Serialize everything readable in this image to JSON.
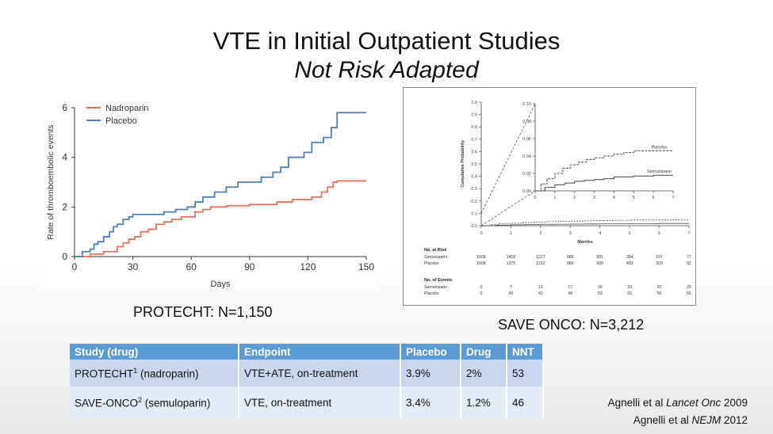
{
  "title_line1": "VTE in Initial Outpatient Studies",
  "title_line2": "Not Risk Adapted",
  "caption_left": "PROTECHT: N=1,150",
  "caption_right": "SAVE ONCO: N=3,212",
  "table": {
    "headers": [
      "Study (drug)",
      "Endpoint",
      "Placebo",
      "Drug",
      "NNT"
    ],
    "rows": [
      {
        "study": "PROTECHT",
        "sup": "1",
        "drug": " (nadroparin)",
        "endpoint": "VTE+ATE, on-treatment",
        "placebo": "3.9%",
        "drug_rate": "2%",
        "nnt": "53"
      },
      {
        "study": "SAVE-ONCO",
        "sup": "2",
        "drug": " (semuloparin)",
        "endpoint": "VTE, on-treatment",
        "placebo": "3.4%",
        "drug_rate": "1.2%",
        "nnt": "46"
      }
    ]
  },
  "refs": [
    {
      "pre": "Agnelli et al ",
      "journal": "Lancet Onc",
      "year": " 2009"
    },
    {
      "pre": "Agnelli et al ",
      "journal": "NEJM",
      "year": " 2012"
    }
  ],
  "chart_data": [
    {
      "type": "line",
      "xlabel": "Days",
      "ylabel": "Rate of thromboembolic events",
      "xlim": [
        0,
        150
      ],
      "ylim": [
        0,
        6
      ],
      "xticks": [
        0,
        30,
        60,
        90,
        120,
        150
      ],
      "yticks": [
        0,
        2,
        4,
        6
      ],
      "legend": "top-left",
      "series": [
        {
          "name": "Nadroparin",
          "color": "#e8705e",
          "x": [
            0,
            4,
            8,
            15,
            22,
            25,
            28,
            31,
            34,
            38,
            42,
            46,
            50,
            55,
            62,
            66,
            70,
            74,
            78,
            85,
            90,
            96,
            104,
            112,
            122,
            127,
            130,
            133,
            135,
            150
          ],
          "y": [
            0,
            0,
            0.1,
            0.2,
            0.4,
            0.55,
            0.7,
            0.8,
            1.0,
            1.1,
            1.3,
            1.4,
            1.5,
            1.6,
            1.8,
            1.9,
            2.0,
            2.0,
            2.05,
            2.05,
            2.1,
            2.1,
            2.2,
            2.3,
            2.4,
            2.6,
            2.8,
            3.0,
            3.05,
            3.05
          ]
        },
        {
          "name": "Placebo",
          "color": "#4f7fb8",
          "x": [
            0,
            4,
            8,
            10,
            12,
            15,
            18,
            20,
            22,
            25,
            28,
            30,
            34,
            40,
            46,
            52,
            58,
            62,
            66,
            72,
            78,
            84,
            90,
            96,
            102,
            106,
            110,
            118,
            122,
            128,
            132,
            135,
            150
          ],
          "y": [
            0,
            0.2,
            0.3,
            0.5,
            0.6,
            0.8,
            1.0,
            1.2,
            1.3,
            1.5,
            1.6,
            1.7,
            1.7,
            1.7,
            1.8,
            1.9,
            2.0,
            2.2,
            2.4,
            2.6,
            2.8,
            3.0,
            3.0,
            3.2,
            3.4,
            3.6,
            4.0,
            4.2,
            4.6,
            4.8,
            5.2,
            5.8,
            5.8
          ]
        }
      ]
    },
    {
      "type": "line",
      "xlabel": "Months",
      "ylabel": "Cumulative Probability",
      "xlim": [
        0,
        7
      ],
      "ylim": [
        0,
        1.0
      ],
      "xticks": [
        0,
        1,
        2,
        3,
        4,
        5,
        6,
        7
      ],
      "yticks": [
        "0.0",
        "0.1",
        "0.2",
        "0.3",
        "0.4",
        "0.5",
        "0.6",
        "0.7",
        "0.8",
        "0.9",
        "1.0"
      ],
      "inset": {
        "ylim": [
          0,
          0.1
        ],
        "yticks": [
          "0.00",
          "0.02",
          "0.04",
          "0.06",
          "0.08",
          "0.10"
        ],
        "xticks": [
          0,
          1,
          2,
          3,
          4,
          5,
          6,
          7
        ]
      },
      "series": [
        {
          "name": "Placebo",
          "dashed": true,
          "x": [
            0,
            0.3,
            0.6,
            1.0,
            1.4,
            1.8,
            2.2,
            2.6,
            3.0,
            3.5,
            4.0,
            4.5,
            5.0,
            6.0,
            7.0
          ],
          "y": [
            0,
            0.008,
            0.014,
            0.02,
            0.026,
            0.03,
            0.033,
            0.036,
            0.038,
            0.04,
            0.042,
            0.044,
            0.046,
            0.046,
            0.046
          ]
        },
        {
          "name": "Semuloparin",
          "dashed": false,
          "x": [
            0,
            0.5,
            1.0,
            1.5,
            2.0,
            2.5,
            3.0,
            3.5,
            4.0,
            5.0,
            6.0,
            7.0
          ],
          "y": [
            0,
            0.004,
            0.007,
            0.009,
            0.011,
            0.012,
            0.013,
            0.014,
            0.016,
            0.017,
            0.018,
            0.018
          ]
        }
      ],
      "at_risk": {
        "title": "No. at Risk",
        "rows": [
          {
            "label": "Semuloparin",
            "values": [
              "1608",
              "1418",
              "1227",
              "986",
              "681",
              "384",
              "197",
              "77"
            ]
          },
          {
            "label": "Placebo",
            "values": [
              "1604",
              "1375",
              "1212",
              "985",
              "689",
              "403",
              "203",
              "92"
            ]
          }
        ]
      },
      "events": {
        "title": "No. of Events",
        "rows": [
          {
            "label": "Semuloparin",
            "values": [
              "0",
              "7",
              "13",
              "17",
              "19",
              "20",
              "20",
              "20"
            ]
          },
          {
            "label": "Placebo",
            "values": [
              "0",
              "26",
              "42",
              "49",
              "53",
              "55",
              "55",
              "55"
            ]
          }
        ]
      }
    }
  ]
}
